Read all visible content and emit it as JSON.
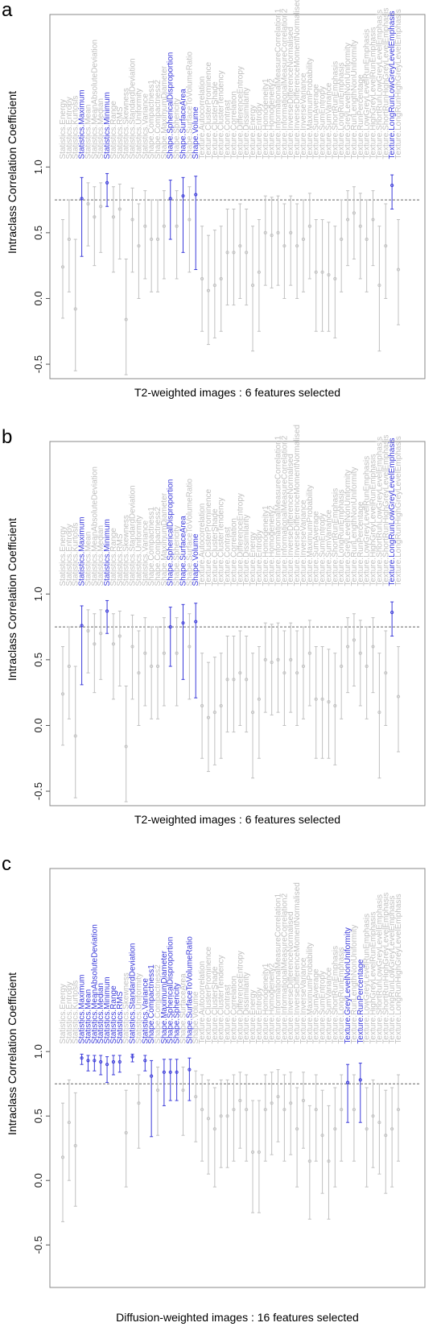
{
  "chart_data": [
    {
      "type": "errorbar",
      "panel_label": "a",
      "ylabel": "Intraclass Correlation Coefficient",
      "xlabel": "T2-weighted images : 6 features selected",
      "categories": [
        "Statistics.Energy",
        "Statistics.Entropy",
        "Statistics.Kurtosis",
        "Statistics.Maximum",
        "Statistics.Mean",
        "Statistics.MeanAbsoluteDeviation",
        "Statistics.Median",
        "Statistics.Minimum",
        "Statistics.Range",
        "Statistics.RMS",
        "Statistics.Skewness",
        "Statistics.StandardDeviation",
        "Statistics.Uniformity",
        "Statistics.Variance",
        "Shape.Compactness1",
        "Shape.Compactness2",
        "Shape.MaximumDiameter",
        "Shape.SphericalDisproportion",
        "Shape.Sphericity",
        "Shape.SurfaceArea",
        "Shape.SurfaceToVolumeRatio",
        "Shape.Volume",
        "Texture.Autocorrelation",
        "Texture.ClusterProminence",
        "Texture.ClusterShade",
        "Texture.ClusterTendency",
        "Texture.Contrast",
        "Texture.Correlation",
        "Texture.DifferenceEntropy",
        "Texture.Dissimilarity",
        "Texture.Energy",
        "Texture.Entropy",
        "Texture.Homogeneity1",
        "Texture.Homogeneity2",
        "Texture.InformationalMeasureCorrelation1",
        "Texture.InformationalMeasureCorrelation2",
        "Texture.InverseDifferenceNormalised",
        "Texture.InverseDifferenceMomentNormalised",
        "Texture.InverseVariance",
        "Texture.MaximumProbability",
        "Texture.SumAverage",
        "Texture.SumEntropy",
        "Texture.SumVariance",
        "Texture.ShortRunEmphasis",
        "Texture.LongRunEmphasis",
        "Texture.GreyLevelNonUniformity",
        "Texture.RunLengthNonUniformity",
        "Texture.RunPercentage",
        "Texture.LowGreyLevelRunEmphasis",
        "Texture.HighGreyLevelRunEmphasis",
        "Texture.ShortRunLowGreyLevelEmphasis",
        "Texture.ShortRunHighGreyLevelEmphasis",
        "Texture.LongRunLowGreyLevelEmphasis",
        "Texture.LongRunHighGreyLevelEmphasis"
      ],
      "values": [
        0.24,
        0.45,
        -0.08,
        0.76,
        0.72,
        0.62,
        0.7,
        0.88,
        0.62,
        0.68,
        -0.16,
        0.6,
        0.4,
        0.55,
        0.45,
        0.45,
        0.55,
        0.76,
        0.55,
        0.78,
        0.6,
        0.79,
        0.15,
        0.06,
        0.1,
        0.15,
        0.35,
        0.35,
        0.4,
        0.35,
        0.1,
        0.2,
        0.5,
        0.48,
        0.5,
        0.4,
        0.5,
        0.4,
        0.45,
        0.55,
        0.2,
        0.2,
        0.18,
        0.15,
        0.45,
        0.6,
        0.65,
        0.55,
        0.45,
        0.6,
        0.1,
        0.4,
        0.86,
        0.22
      ],
      "lower": [
        -0.15,
        0.05,
        -0.55,
        0.32,
        0.4,
        0.25,
        0.35,
        0.7,
        0.2,
        0.3,
        -0.58,
        0.2,
        0,
        0.15,
        0.05,
        0.05,
        0.15,
        0.45,
        0.15,
        0.35,
        0.2,
        0.22,
        -0.25,
        -0.35,
        -0.3,
        -0.25,
        -0.05,
        -0.05,
        0,
        -0.05,
        -0.4,
        -0.25,
        0.1,
        0.08,
        0.1,
        0,
        0.1,
        0,
        0.05,
        0.15,
        -0.25,
        -0.25,
        -0.25,
        -0.3,
        0.05,
        0.25,
        0.3,
        0.15,
        0.05,
        0.25,
        -0.4,
        0,
        0.68,
        -0.2
      ],
      "upper": [
        0.6,
        0.75,
        0.45,
        0.92,
        0.88,
        0.85,
        0.88,
        0.95,
        0.85,
        0.87,
        0.3,
        0.84,
        0.72,
        0.82,
        0.75,
        0.75,
        0.82,
        0.9,
        0.82,
        0.92,
        0.85,
        0.93,
        0.55,
        0.48,
        0.52,
        0.55,
        0.68,
        0.68,
        0.72,
        0.68,
        0.55,
        0.6,
        0.78,
        0.77,
        0.78,
        0.72,
        0.78,
        0.72,
        0.75,
        0.8,
        0.6,
        0.6,
        0.58,
        0.55,
        0.75,
        0.82,
        0.85,
        0.8,
        0.75,
        0.82,
        0.55,
        0.72,
        0.94,
        0.6
      ],
      "colors": [
        "#c0c0c0",
        "#c0c0c0",
        "#c0c0c0",
        "#3b3bd9",
        "#c0c0c0",
        "#c0c0c0",
        "#c0c0c0",
        "#3b3bd9",
        "#c0c0c0",
        "#c0c0c0",
        "#c0c0c0",
        "#c0c0c0",
        "#c0c0c0",
        "#c0c0c0",
        "#c0c0c0",
        "#c0c0c0",
        "#c0c0c0",
        "#3b3bd9",
        "#c0c0c0",
        "#3b3bd9",
        "#c0c0c0",
        "#3b3bd9",
        "#c0c0c0",
        "#c0c0c0",
        "#c0c0c0",
        "#c0c0c0",
        "#c0c0c0",
        "#c0c0c0",
        "#c0c0c0",
        "#c0c0c0",
        "#c0c0c0",
        "#c0c0c0",
        "#c0c0c0",
        "#c0c0c0",
        "#c0c0c0",
        "#c0c0c0",
        "#c0c0c0",
        "#c0c0c0",
        "#c0c0c0",
        "#c0c0c0",
        "#c0c0c0",
        "#c0c0c0",
        "#c0c0c0",
        "#c0c0c0",
        "#c0c0c0",
        "#c0c0c0",
        "#c0c0c0",
        "#c0c0c0",
        "#c0c0c0",
        "#c0c0c0",
        "#c0c0c0",
        "#c0c0c0",
        "#3b3bd9",
        "#c0c0c0"
      ],
      "ylim": [
        -0.61,
        2.16
      ],
      "yticks": [
        -0.5,
        {
          "value": 0,
          "label": "0.0"
        },
        0.5,
        {
          "value": 1,
          "label": "1.0"
        }
      ],
      "threshold": 0.75
    },
    {
      "type": "errorbar",
      "panel_label": "b",
      "ylabel": "Intraclass Correlation Coefficient",
      "xlabel": "T2-weighted images : 6 features selected",
      "categories": [
        "Statistics.Energy",
        "Statistics.Entropy",
        "Statistics.Kurtosis",
        "Statistics.Maximum",
        "Statistics.Mean",
        "Statistics.MeanAbsoluteDeviation",
        "Statistics.Median",
        "Statistics.Minimum",
        "Statistics.Range",
        "Statistics.RMS",
        "Statistics.Skewness",
        "Statistics.StandardDeviation",
        "Statistics.Uniformity",
        "Statistics.Variance",
        "Shape.Compactness1",
        "Shape.Compactness2",
        "Shape.MaximumDiameter",
        "Shape.SphericalDisproportion",
        "Shape.Sphericity",
        "Shape.SurfaceArea",
        "Shape.SurfaceToVolumeRatio",
        "Shape.Volume",
        "Texture.Autocorrelation",
        "Texture.ClusterProminence",
        "Texture.ClusterShade",
        "Texture.ClusterTendency",
        "Texture.Contrast",
        "Texture.Correlation",
        "Texture.DifferenceEntropy",
        "Texture.Dissimilarity",
        "Texture.Energy",
        "Texture.Entropy",
        "Texture.Homogeneity1",
        "Texture.Homogeneity2",
        "Texture.InformationalMeasureCorrelation1",
        "Texture.InformationalMeasureCorrelation2",
        "Texture.InverseDifferenceNormalised",
        "Texture.InverseDifferenceMomentNormalised",
        "Texture.InverseVariance",
        "Texture.MaximumProbability",
        "Texture.SumAverage",
        "Texture.SumEntropy",
        "Texture.SumVariance",
        "Texture.ShortRunEmphasis",
        "Texture.LongRunEmphasis",
        "Texture.GreyLevelNonUniformity",
        "Texture.RunLengthNonUniformity",
        "Texture.RunPercentage",
        "Texture.LowGreyLevelRunEmphasis",
        "Texture.HighGreyLevelRunEmphasis",
        "Texture.ShortRunLowGreyLevelEmphasis",
        "Texture.ShortRunHighGreyLevelEmphasis",
        "Texture.LongRunLowGreyLevelEmphasis",
        "Texture.LongRunHighGreyLevelEmphasis"
      ],
      "values": [
        0.24,
        0.45,
        -0.08,
        0.76,
        0.72,
        0.62,
        0.7,
        0.87,
        0.62,
        0.68,
        -0.16,
        0.6,
        0.4,
        0.55,
        0.45,
        0.45,
        0.55,
        0.75,
        0.55,
        0.78,
        0.6,
        0.79,
        0.15,
        0.06,
        0.1,
        0.15,
        0.35,
        0.35,
        0.4,
        0.35,
        0.1,
        0.2,
        0.5,
        0.48,
        0.5,
        0.4,
        0.5,
        0.4,
        0.45,
        0.55,
        0.2,
        0.2,
        0.18,
        0.15,
        0.45,
        0.6,
        0.65,
        0.55,
        0.45,
        0.6,
        0.1,
        0.4,
        0.86,
        0.22
      ],
      "lower": [
        -0.15,
        0.05,
        -0.55,
        0.31,
        0.4,
        0.25,
        0.35,
        0.7,
        0.2,
        0.3,
        -0.58,
        0.2,
        0,
        0.15,
        0.05,
        0.05,
        0.15,
        0.45,
        0.15,
        0.35,
        0.2,
        0.21,
        -0.25,
        -0.35,
        -0.3,
        -0.25,
        -0.05,
        -0.05,
        0,
        -0.05,
        -0.4,
        -0.25,
        0.1,
        0.08,
        0.1,
        0,
        0.1,
        0,
        0.05,
        0.15,
        -0.25,
        -0.25,
        -0.25,
        -0.3,
        0.05,
        0.25,
        0.3,
        0.15,
        0.05,
        0.25,
        -0.4,
        0,
        0.68,
        -0.2
      ],
      "upper": [
        0.6,
        0.75,
        0.45,
        0.91,
        0.88,
        0.85,
        0.88,
        0.95,
        0.85,
        0.87,
        0.3,
        0.84,
        0.72,
        0.82,
        0.75,
        0.75,
        0.82,
        0.9,
        0.82,
        0.92,
        0.85,
        0.93,
        0.55,
        0.48,
        0.52,
        0.55,
        0.68,
        0.68,
        0.72,
        0.68,
        0.55,
        0.6,
        0.78,
        0.77,
        0.78,
        0.72,
        0.78,
        0.72,
        0.75,
        0.8,
        0.6,
        0.6,
        0.58,
        0.55,
        0.75,
        0.82,
        0.85,
        0.8,
        0.75,
        0.82,
        0.55,
        0.72,
        0.94,
        0.6
      ],
      "colors": [
        "#c0c0c0",
        "#c0c0c0",
        "#c0c0c0",
        "#3b3bd9",
        "#c0c0c0",
        "#c0c0c0",
        "#c0c0c0",
        "#3b3bd9",
        "#c0c0c0",
        "#c0c0c0",
        "#c0c0c0",
        "#c0c0c0",
        "#c0c0c0",
        "#c0c0c0",
        "#c0c0c0",
        "#c0c0c0",
        "#c0c0c0",
        "#3b3bd9",
        "#c0c0c0",
        "#3b3bd9",
        "#c0c0c0",
        "#3b3bd9",
        "#c0c0c0",
        "#c0c0c0",
        "#c0c0c0",
        "#c0c0c0",
        "#c0c0c0",
        "#c0c0c0",
        "#c0c0c0",
        "#c0c0c0",
        "#c0c0c0",
        "#c0c0c0",
        "#c0c0c0",
        "#c0c0c0",
        "#c0c0c0",
        "#c0c0c0",
        "#c0c0c0",
        "#c0c0c0",
        "#c0c0c0",
        "#c0c0c0",
        "#c0c0c0",
        "#c0c0c0",
        "#c0c0c0",
        "#c0c0c0",
        "#c0c0c0",
        "#c0c0c0",
        "#c0c0c0",
        "#c0c0c0",
        "#c0c0c0",
        "#c0c0c0",
        "#c0c0c0",
        "#c0c0c0",
        "#3b3bd9",
        "#c0c0c0"
      ],
      "ylim": [
        -0.61,
        2.16
      ],
      "yticks": [
        -0.5,
        {
          "value": 0,
          "label": "0.0"
        },
        0.5,
        {
          "value": 1,
          "label": "1.0"
        }
      ],
      "threshold": 0.75
    },
    {
      "type": "errorbar",
      "panel_label": "c",
      "ylabel": "Intraclass Correlation Coefficient",
      "xlabel": "Diffusion-weighted images : 16 features selected",
      "categories": [
        "Statistics.Energy",
        "Statistics.Entropy",
        "Statistics.Kurtosis",
        "Statistics.Maximum",
        "Statistics.Mean",
        "Statistics.MeanAbsoluteDeviation",
        "Statistics.Median",
        "Statistics.Minimum",
        "Statistics.Range",
        "Statistics.RMS",
        "Statistics.Skewness",
        "Statistics.StandardDeviation",
        "Statistics.Uniformity",
        "Statistics.Variance",
        "Shape.Compactness1",
        "Shape.Compactness2",
        "Shape.MaximumDiameter",
        "Shape.SphericalDisproportion",
        "Shape.Sphericity",
        "Shape.SurfaceArea",
        "Shape.SurfaceToVolumeRatio",
        "Shape.Volume",
        "Texture.Autocorrelation",
        "Texture.ClusterProminence",
        "Texture.ClusterShade",
        "Texture.ClusterTendency",
        "Texture.Contrast",
        "Texture.Correlation",
        "Texture.DifferenceEntropy",
        "Texture.Dissimilarity",
        "Texture.Energy",
        "Texture.Entropy",
        "Texture.Homogeneity1",
        "Texture.Homogeneity2",
        "Texture.InformationalMeasureCorrelation1",
        "Texture.InformationalMeasureCorrelation2",
        "Texture.InverseDifferenceNormalised",
        "Texture.InverseDifferenceMomentNormalised",
        "Texture.InverseVariance",
        "Texture.MaximumProbability",
        "Texture.SumAverage",
        "Texture.SumEntropy",
        "Texture.SumVariance",
        "Texture.ShortRunEmphasis",
        "Texture.LongRunEmphasis",
        "Texture.GreyLevelNonUniformity",
        "Texture.RunLengthNonUniformity",
        "Texture.RunPercentage",
        "Texture.LowGreyLevelRunEmphasis",
        "Texture.HighGreyLevelRunEmphasis",
        "Texture.ShortRunLowGreyLevelEmphasis",
        "Texture.ShortRunHighGreyLevelEmphasis",
        "Texture.LongRunLowGreyLevelEmphasis",
        "Texture.LongRunHighGreyLevelEmphasis"
      ],
      "values": [
        0.18,
        0.45,
        0.27,
        0.95,
        0.93,
        0.93,
        0.92,
        0.9,
        0.92,
        0.92,
        0.37,
        0.96,
        0.6,
        0.93,
        0.81,
        0.7,
        0.84,
        0.84,
        0.84,
        0.7,
        0.86,
        0.65,
        0.55,
        0.48,
        0.4,
        0.5,
        0.5,
        0.55,
        0.62,
        0.55,
        0.22,
        0.22,
        0.55,
        0.6,
        0.65,
        0.55,
        0.6,
        0.4,
        0.62,
        0.15,
        0.55,
        0.35,
        0.15,
        0.4,
        0.55,
        0.76,
        0.55,
        0.78,
        0.4,
        0.5,
        0.45,
        0.35,
        0.4,
        0.55
      ],
      "lower": [
        -0.32,
        0,
        -0.2,
        0.9,
        0.85,
        0.85,
        0.82,
        0.76,
        0.82,
        0.84,
        -0.05,
        0.92,
        0.25,
        0.85,
        0.34,
        0.35,
        0.58,
        0.62,
        0.62,
        0.35,
        0.62,
        0.3,
        0.15,
        0.05,
        -0.05,
        0.1,
        0.1,
        0.15,
        0.25,
        0.15,
        -0.25,
        -0.25,
        0.15,
        0.2,
        0.3,
        0.15,
        0.2,
        -0.05,
        0.25,
        -0.3,
        0.15,
        -0.1,
        -0.3,
        -0.05,
        0.15,
        0.45,
        0.15,
        0.45,
        -0.05,
        0.1,
        0.05,
        -0.1,
        -0.05,
        0.15
      ],
      "upper": [
        0.6,
        0.78,
        0.68,
        0.98,
        0.97,
        0.97,
        0.97,
        0.96,
        0.97,
        0.97,
        0.7,
        0.98,
        0.82,
        0.97,
        0.93,
        0.88,
        0.94,
        0.94,
        0.94,
        0.88,
        0.95,
        0.85,
        0.82,
        0.78,
        0.72,
        0.78,
        0.78,
        0.82,
        0.84,
        0.82,
        0.62,
        0.62,
        0.82,
        0.84,
        0.86,
        0.82,
        0.84,
        0.72,
        0.84,
        0.58,
        0.82,
        0.7,
        0.58,
        0.72,
        0.82,
        0.9,
        0.82,
        0.91,
        0.72,
        0.78,
        0.75,
        0.7,
        0.72,
        0.82
      ],
      "colors": [
        "#c0c0c0",
        "#c0c0c0",
        "#c0c0c0",
        "#3b3bd9",
        "#3b3bd9",
        "#3b3bd9",
        "#3b3bd9",
        "#3b3bd9",
        "#3b3bd9",
        "#3b3bd9",
        "#c0c0c0",
        "#3b3bd9",
        "#c0c0c0",
        "#3b3bd9",
        "#3b3bd9",
        "#c0c0c0",
        "#3b3bd9",
        "#3b3bd9",
        "#3b3bd9",
        "#c0c0c0",
        "#3b3bd9",
        "#c0c0c0",
        "#c0c0c0",
        "#c0c0c0",
        "#c0c0c0",
        "#c0c0c0",
        "#c0c0c0",
        "#c0c0c0",
        "#c0c0c0",
        "#c0c0c0",
        "#c0c0c0",
        "#c0c0c0",
        "#c0c0c0",
        "#c0c0c0",
        "#c0c0c0",
        "#c0c0c0",
        "#c0c0c0",
        "#c0c0c0",
        "#c0c0c0",
        "#c0c0c0",
        "#c0c0c0",
        "#c0c0c0",
        "#c0c0c0",
        "#c0c0c0",
        "#c0c0c0",
        "#3b3bd9",
        "#c0c0c0",
        "#3b3bd9",
        "#c0c0c0",
        "#c0c0c0",
        "#c0c0c0",
        "#c0c0c0",
        "#c0c0c0",
        "#c0c0c0"
      ],
      "ylim": [
        -0.83,
        2.42
      ],
      "yticks": [
        -0.5,
        {
          "value": 0,
          "label": "0.0"
        },
        0.5,
        {
          "value": 1,
          "label": "1.0"
        }
      ],
      "threshold": 0.75
    }
  ]
}
